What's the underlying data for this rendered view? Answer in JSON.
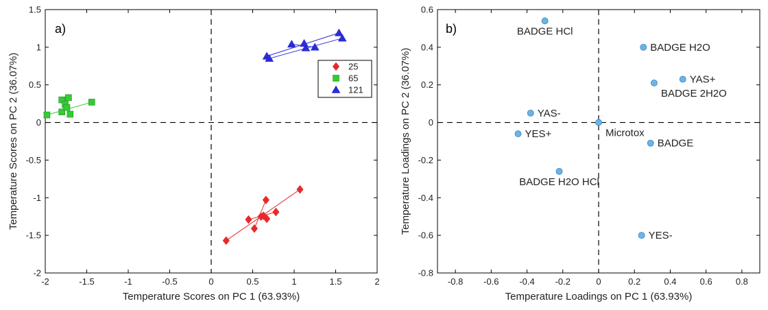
{
  "chart_data": [
    {
      "type": "scatter",
      "panel_label": "a)",
      "xlabel": "Temperature Scores on PC 1 (63.93%)",
      "ylabel": "Temperature Scores on PC 2 (36.07%)",
      "xlim": [
        -2,
        2
      ],
      "ylim": [
        -2,
        1.5
      ],
      "xticks": [
        -2,
        -1.5,
        -1,
        -0.5,
        0,
        0.5,
        1,
        1.5,
        2
      ],
      "xtick_labels": [
        "-2",
        "-1.5",
        "-1",
        "-0.5",
        "0",
        "0.5",
        "1",
        "1.5",
        "2"
      ],
      "yticks": [
        -2,
        -1.5,
        -1,
        -0.5,
        0,
        0.5,
        1,
        1.5
      ],
      "ytick_labels": [
        "-2",
        "-1.5",
        "-1",
        "-0.5",
        "0",
        "0.5",
        "1",
        "1.5"
      ],
      "grid": false,
      "zero_lines": "dashed",
      "legend_position": "right",
      "series": [
        {
          "name": "25",
          "color": "#e8292b",
          "marker": "diamond",
          "points": [
            [
              0.18,
              -1.57
            ],
            [
              0.45,
              -1.29
            ],
            [
              0.52,
              -1.41
            ],
            [
              0.6,
              -1.25
            ],
            [
              0.63,
              -1.24
            ],
            [
              0.66,
              -1.03
            ],
            [
              0.67,
              -1.28
            ],
            [
              0.78,
              -1.19
            ],
            [
              1.07,
              -0.89
            ]
          ],
          "lines": [
            [
              [
                0.18,
                -1.57
              ],
              [
                1.07,
                -0.89
              ]
            ],
            [
              [
                0.45,
                -1.29
              ],
              [
                0.78,
                -1.19
              ]
            ],
            [
              [
                0.52,
                -1.41
              ],
              [
                0.66,
                -1.03
              ]
            ],
            [
              [
                0.6,
                -1.25
              ],
              [
                0.67,
                -1.28
              ]
            ]
          ]
        },
        {
          "name": "65",
          "color": "#33cc33",
          "marker": "square",
          "points": [
            [
              -1.98,
              0.1
            ],
            [
              -1.8,
              0.3
            ],
            [
              -1.8,
              0.14
            ],
            [
              -1.76,
              0.24
            ],
            [
              -1.74,
              0.2
            ],
            [
              -1.72,
              0.33
            ],
            [
              -1.7,
              0.11
            ],
            [
              -1.44,
              0.27
            ]
          ],
          "lines": [
            [
              [
                -1.98,
                0.1
              ],
              [
                -1.44,
                0.27
              ]
            ],
            [
              [
                -1.8,
                0.3
              ],
              [
                -1.7,
                0.11
              ]
            ],
            [
              [
                -1.8,
                0.14
              ],
              [
                -1.72,
                0.33
              ]
            ]
          ]
        },
        {
          "name": "121",
          "color": "#2b2bd6",
          "marker": "triangle",
          "points": [
            [
              0.67,
              0.88
            ],
            [
              0.7,
              0.85
            ],
            [
              0.97,
              1.04
            ],
            [
              1.12,
              1.05
            ],
            [
              1.14,
              0.99
            ],
            [
              1.25,
              1.0
            ],
            [
              1.54,
              1.19
            ],
            [
              1.58,
              1.12
            ]
          ],
          "lines": [
            [
              [
                0.67,
                0.88
              ],
              [
                1.54,
                1.19
              ]
            ],
            [
              [
                0.7,
                0.85
              ],
              [
                1.58,
                1.12
              ]
            ],
            [
              [
                0.97,
                1.04
              ],
              [
                1.25,
                1.0
              ]
            ]
          ]
        }
      ]
    },
    {
      "type": "scatter",
      "panel_label": "b)",
      "xlabel": "Temperature Loadings on PC 1 (63.93%)",
      "ylabel": "Temperature Loadings on PC 2 (36.07%)",
      "xlim": [
        -0.9,
        0.9
      ],
      "ylim": [
        -0.8,
        0.6
      ],
      "xticks": [
        -0.8,
        -0.6,
        -0.4,
        -0.2,
        0,
        0.2,
        0.4,
        0.6,
        0.8
      ],
      "xtick_labels": [
        "-0.8",
        "-0.6",
        "-0.4",
        "-0.2",
        "0",
        "0.2",
        "0.4",
        "0.6",
        "0.8"
      ],
      "yticks": [
        -0.8,
        -0.6,
        -0.4,
        -0.2,
        0,
        0.2,
        0.4,
        0.6
      ],
      "ytick_labels": [
        "-0.8",
        "-0.6",
        "-0.4",
        "-0.2",
        "0",
        "0.2",
        "0.4",
        "0.6"
      ],
      "grid": false,
      "zero_lines": "dashed",
      "point_color": "#6bb5e6",
      "points": [
        {
          "label": "BADGE HCl",
          "x": -0.3,
          "y": 0.54,
          "label_pos": "below"
        },
        {
          "label": "BADGE H2O",
          "x": 0.25,
          "y": 0.4,
          "label_pos": "right"
        },
        {
          "label": "YAS+",
          "x": 0.47,
          "y": 0.23,
          "label_pos": "right"
        },
        {
          "label": "BADGE 2H2O",
          "x": 0.31,
          "y": 0.21,
          "label_pos": "below-right"
        },
        {
          "label": "YAS-",
          "x": -0.38,
          "y": 0.05,
          "label_pos": "right"
        },
        {
          "label": "Microtox",
          "x": 0.0,
          "y": 0.0,
          "label_pos": "below-right"
        },
        {
          "label": "YES+",
          "x": -0.45,
          "y": -0.06,
          "label_pos": "right"
        },
        {
          "label": "BADGE",
          "x": 0.29,
          "y": -0.11,
          "label_pos": "right"
        },
        {
          "label": "BADGE H2O HCl",
          "x": -0.22,
          "y": -0.26,
          "label_pos": "below"
        },
        {
          "label": "YES-",
          "x": 0.24,
          "y": -0.6,
          "label_pos": "right"
        }
      ]
    }
  ]
}
